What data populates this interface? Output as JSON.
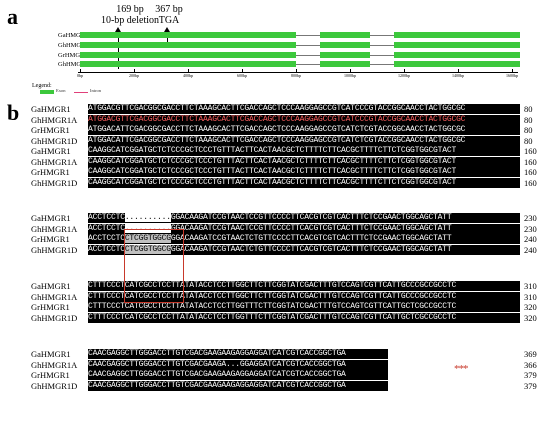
{
  "panel_a": {
    "label": "a",
    "annotation_deletion": [
      "169 bp",
      "10-bp deletion"
    ],
    "annotation_stop": [
      "367 bp",
      "TGA"
    ],
    "genes": [
      "GaHMGR1",
      "GhHMGR1A",
      "GrHMGR1",
      "GhHMGR1D"
    ],
    "scale_ticks": [
      "0bp",
      "200bp",
      "400bp",
      "600bp",
      "800bp",
      "1000bp",
      "1200bp",
      "1400bp",
      "1600bp"
    ],
    "legend_title": "Legend:",
    "legend_exon": "Exon",
    "legend_intron": "Intron",
    "exon_color": "#3cc83c",
    "intron_color": "#e0407a"
  },
  "panel_b": {
    "label": "b",
    "blocks": [
      {
        "rows": [
          {
            "name": "GaHMGR1",
            "seq": "ATGGACGTTCGACGGCGACCTTCTAAAGCACTTCGACCAGCTCCCAAGGAGCCGTCATCCCGTACCGGCAACCTACTGGCGC",
            "num": "80"
          },
          {
            "name": "GhHMGR1A",
            "seq": "ATGGACGTTCGACGGCGACCTTCTAAAGCACTTCGACCAGCTCCCAAGGAGCCGTCATCCCGTACCGGCAACCTACTGGCGC",
            "num": "80",
            "red": true
          },
          {
            "name": "GrHMGR1",
            "seq": "ATGGACATTCGACGGCGACCTTCTAAAGCACTTCGACCAGCTCCCAAGGAGCCGTCATCTCGTACCGGCAACCTACTGGCGC",
            "num": "80"
          },
          {
            "name": "GhHMGR1D",
            "seq": "ATGGACATTCGACGGCGACCTTCTAAAGCACTTCGACCAGCTCCCAAGGAGCCGTCATCTCGTACCGGCAACCTACTGGCGC",
            "num": "80"
          }
        ]
      },
      {
        "rows": [
          {
            "name": "GaHMGR1",
            "seq": "CAAGGCATCGGATGCTCTCCCGCTCCCTGTTTACTTCACTAACGCTCTTTTCTTCACGCTTTTCTTCTCGGTGGCGTACT",
            "num": "160"
          },
          {
            "name": "GhHMGR1A",
            "seq": "CAAGGCATCGGATGCTCTCCCGCTCCCTGTTTACTTCACTAACGCTCTTTTCTTCACGCTTTTCTTCTCGGTGGCGTACT",
            "num": "160"
          },
          {
            "name": "GrHMGR1",
            "seq": "CAAGGCATCGGATGCTCTCCCGCTCCCTGTTTACTTCACTAACGCTCTTTTCTTCACGCTTTTCTTCTCGGTGGCGTACT",
            "num": "160"
          },
          {
            "name": "GhHMGR1D",
            "seq": "CAAGGCATCGGATGCTCTCCCGCTCCCTGTTTACTTCACTAACGCTCTTTTCTTCACGCTTTTCTTCTCGGTGGCGTACT",
            "num": "160"
          }
        ]
      },
      {
        "rows": [
          {
            "name": "GaHMGR1",
            "seq": "ACCTCCTC..........GGACAAGATCCGTAACTCCGTTCCCCTTCACGTCGTCACTTTCTCCGAACTGGCAGCTATT",
            "num": "230"
          },
          {
            "name": "GhHMGR1A",
            "seq": "ACCTCCTC..........GGACAAGATCCGTAACTCCGTTCCCCTTCACGTCGTCACTTTCTCCGAACTGGCAGCTATT",
            "num": "230"
          },
          {
            "name": "GrHMGR1",
            "seq": "ACCTCCTCCTCGGTGGCGGGACAAGATCCGTAACTCTGTTCCCCTTCACGTCGTCACTTTCTCCGAACTGGCAGCTATT",
            "num": "240"
          },
          {
            "name": "GhHMGR1D",
            "seq": "ACCTCCTCCTCGGTGGCGGGACAAGATCCGTAACTCTGTTCCCCTTCACGTCGTCACTTTCTCCGAACTGGCAGCTATT",
            "num": "240"
          }
        ]
      },
      {
        "rows": [
          {
            "name": "GaHMGR1",
            "seq": "CTTTCCCTCATCGCCTCCTTATATACCTCCTTGGCTTCTTCGGTATCGACTTTGTCCAGTCGTTCATTGCCCGCCGCCTC",
            "num": "310"
          },
          {
            "name": "GhHMGR1A",
            "seq": "CTTTCCCTCATCGCCTCCTTATATACCTCCTTGGCTTCTTCGGTATCGACTTTGTCCAGTCGTTCATTGCCCGCCGCCTC",
            "num": "310"
          },
          {
            "name": "GrHMGR1",
            "seq": "CTTTCCCTCATCGCCTCCTTATATACCTCCTTGGTTTCTTCGGTATCGACTTTGTCCAGTCGTTCATTGCTCGCCGCCTC",
            "num": "320"
          },
          {
            "name": "GhHMGR1D",
            "seq": "CTTTCCCTCATCGCCTCCTTATATACCTCCTTGGTTTCTTCGGTATCGACTTTGTCCAGTCGTTCATTGCTCGCCGCCTC",
            "num": "320"
          }
        ]
      },
      {
        "stars": "***",
        "rows": [
          {
            "name": "GaHMGR1",
            "seq": "CAACGAGGCTTGGGACCTTGTCGACGAAGAAGAGGAGGATCATCGTCACCGGCTGA",
            "num": "369"
          },
          {
            "name": "GhHMGR1A",
            "seq": "CAACGAGGCTTGGGACCTTGTCGACGAAGA...GGAGGATCATCGTCACCGGCTGA",
            "num": "366"
          },
          {
            "name": "GrHMGR1",
            "seq": "CAACGAGGCTTGGGACCTTGTCGACGAAGAAGAGGAGGATCATCGTCACCGGCTGA",
            "num": "379"
          },
          {
            "name": "GhHMGR1D",
            "seq": "CAACGAGGCTTGGGACCTTGTCGACGAAGAAGAGGAGGATCATCGTCACCGGCTGA",
            "num": "379"
          }
        ]
      }
    ]
  }
}
